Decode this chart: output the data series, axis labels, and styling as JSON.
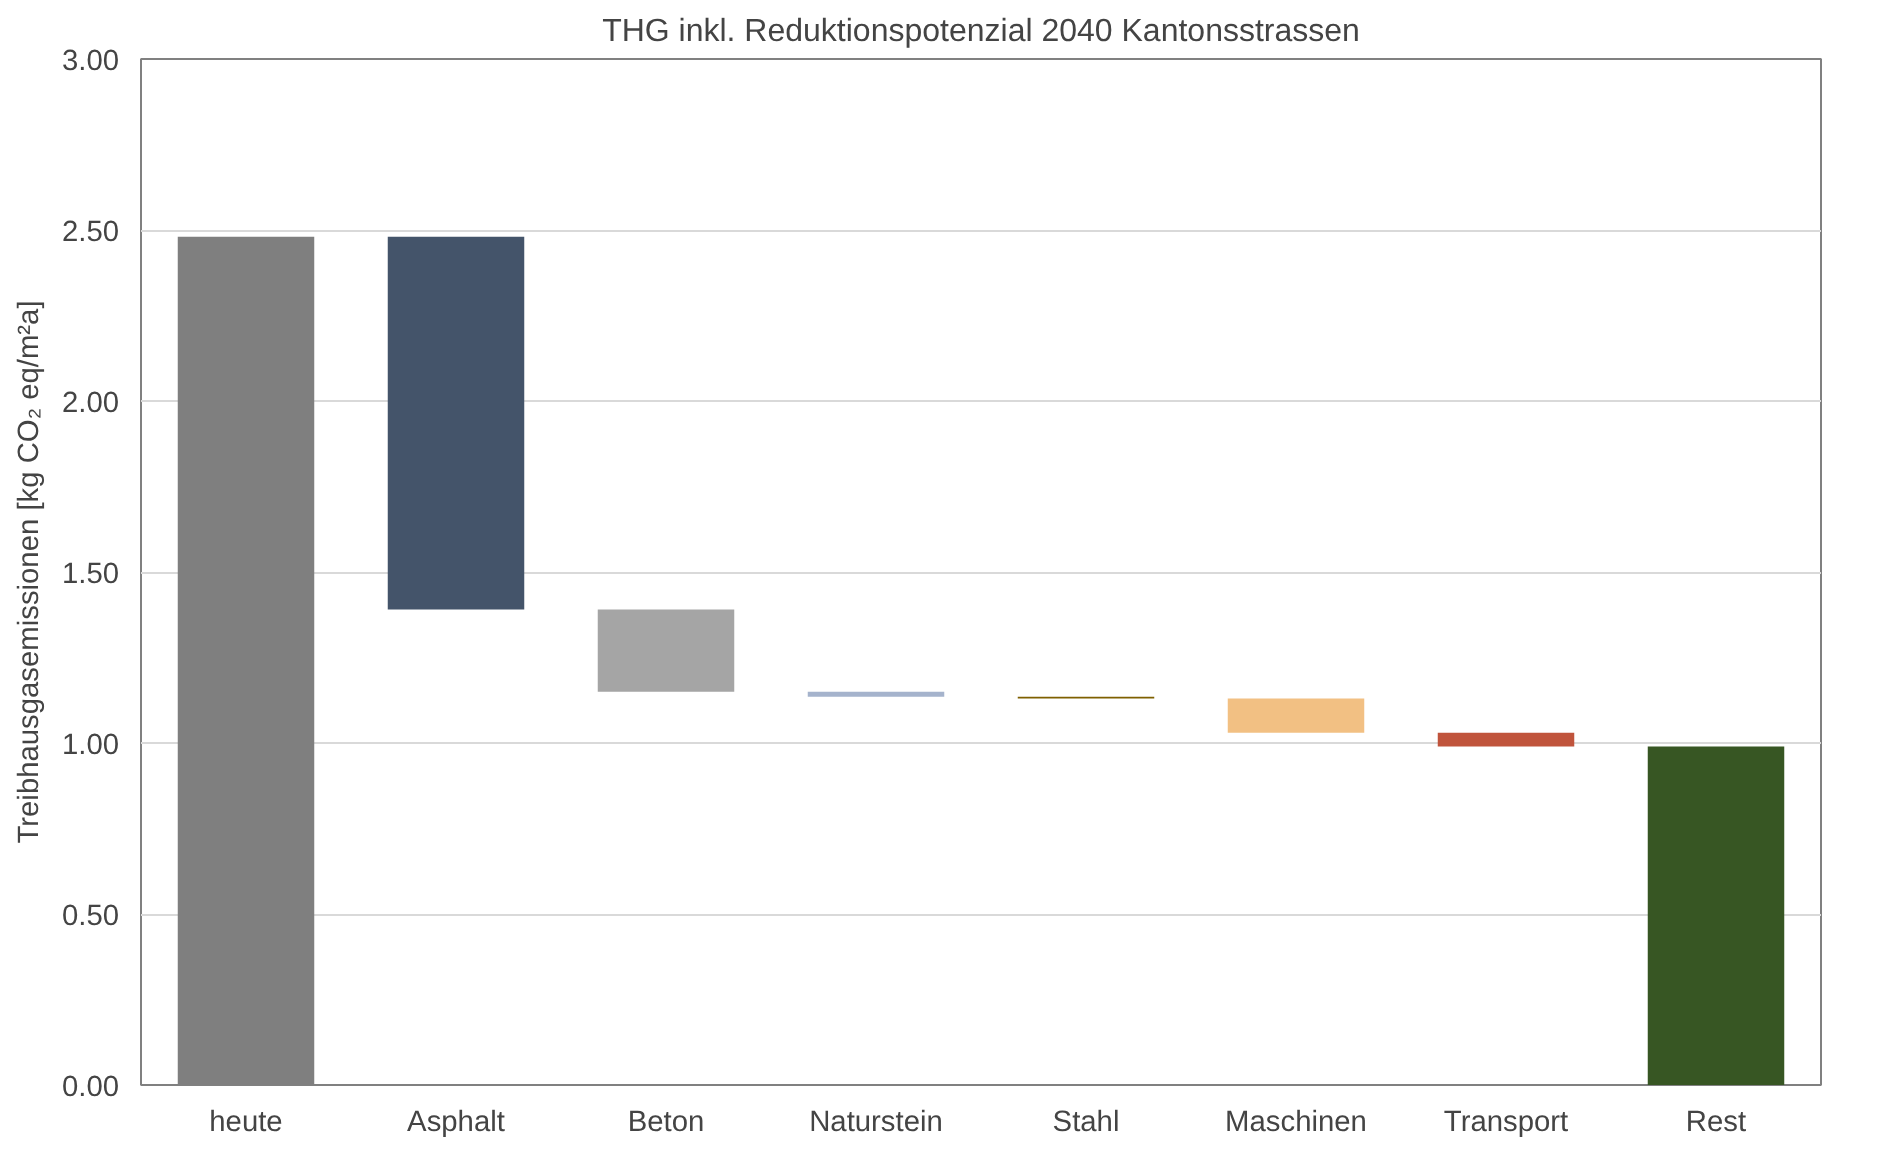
{
  "chart_data": {
    "type": "bar",
    "title": "THG inkl. Reduktionspotenzial 2040 Kantonsstrassen",
    "ylabel": "Treibhausgasemissionen [kg CO₂ eq/m²a]",
    "categories": [
      "heute",
      "Asphalt",
      "Beton",
      "Naturstein",
      "Stahl",
      "Maschinen",
      "Transport",
      "Rest"
    ],
    "values": [
      2.48,
      -1.09,
      -0.24,
      -0.015,
      -0.005,
      -0.1,
      -0.04,
      0.99
    ],
    "base": [
      0,
      2.48,
      1.39,
      1.15,
      1.135,
      1.13,
      1.03,
      0
    ],
    "colors": [
      "#7f7f7f",
      "#44546a",
      "#a5a5a5",
      "#a5b3cc",
      "#7f6000",
      "#f2c083",
      "#c0543c",
      "#375623"
    ],
    "ylim": [
      0,
      3
    ],
    "yticks": [
      {
        "value": 0,
        "label": "0.00"
      },
      {
        "value": 0.5,
        "label": "0.50"
      },
      {
        "value": 1,
        "label": "1.00"
      },
      {
        "value": 1.5,
        "label": "1.50"
      },
      {
        "value": 2,
        "label": "2.00"
      },
      {
        "value": 2.5,
        "label": "2.50"
      },
      {
        "value": 3,
        "label": "3.00"
      }
    ],
    "grid": "y"
  }
}
